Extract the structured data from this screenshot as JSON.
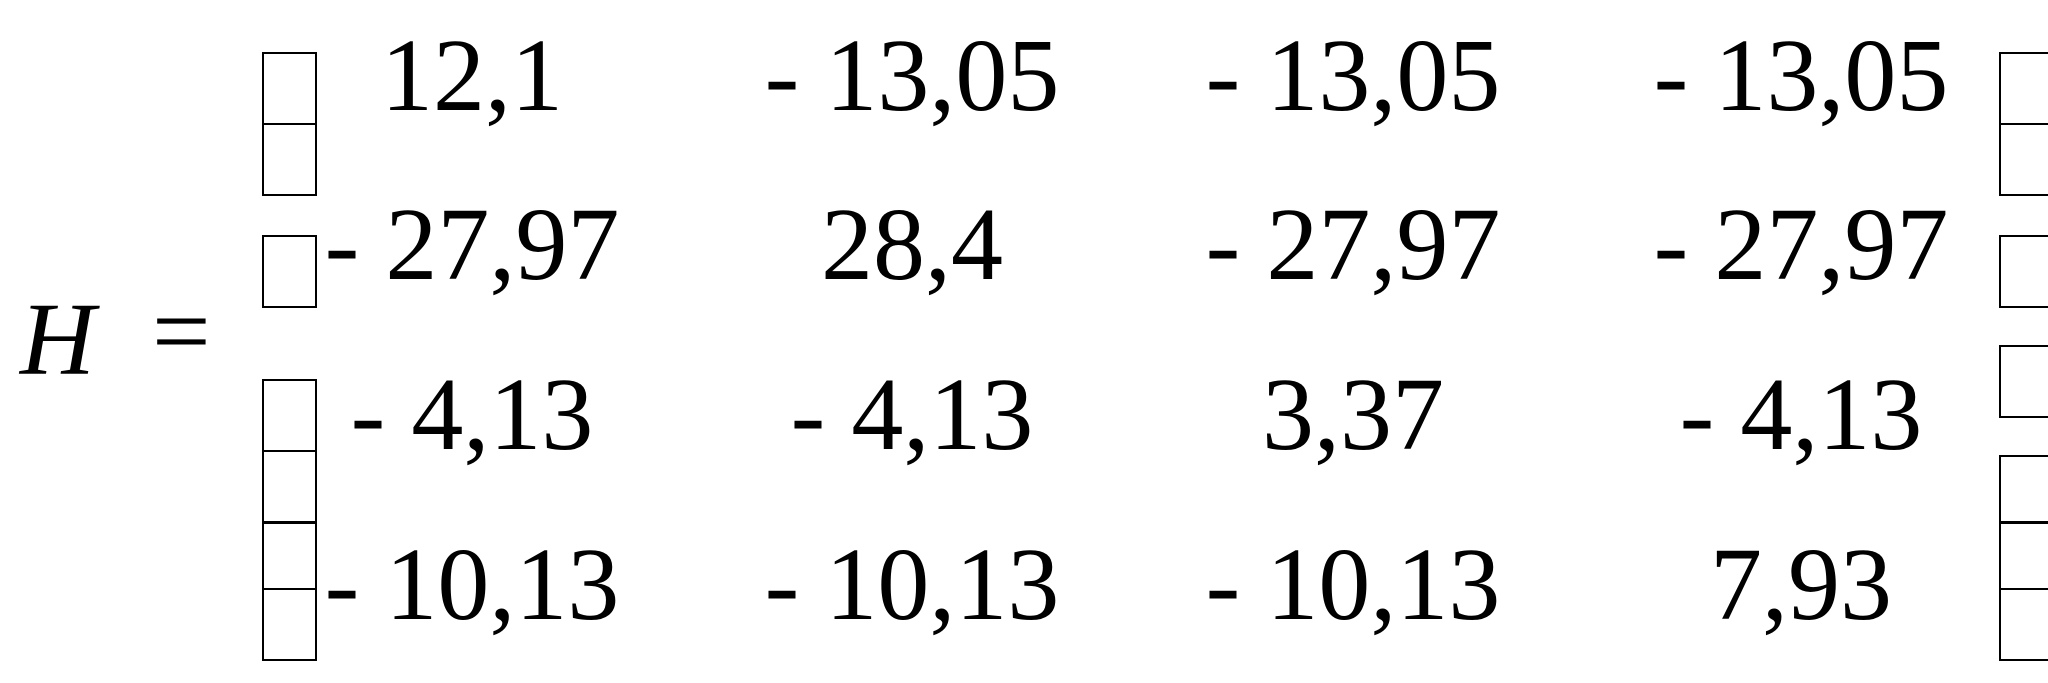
{
  "equation": {
    "lhs": "H",
    "equals": "=",
    "matrix": [
      [
        "12,1",
        "- 13,05",
        "- 13,05",
        "- 13,05"
      ],
      [
        "- 27,97",
        "28,4",
        "- 27,97",
        "- 27,97"
      ],
      [
        "- 4,13",
        "- 4,13",
        "3,37",
        "- 4,13"
      ],
      [
        "- 10,13",
        "- 10,13",
        "- 10,13",
        "7,93"
      ]
    ],
    "bracket_glyph": "missing-glyph-box"
  }
}
